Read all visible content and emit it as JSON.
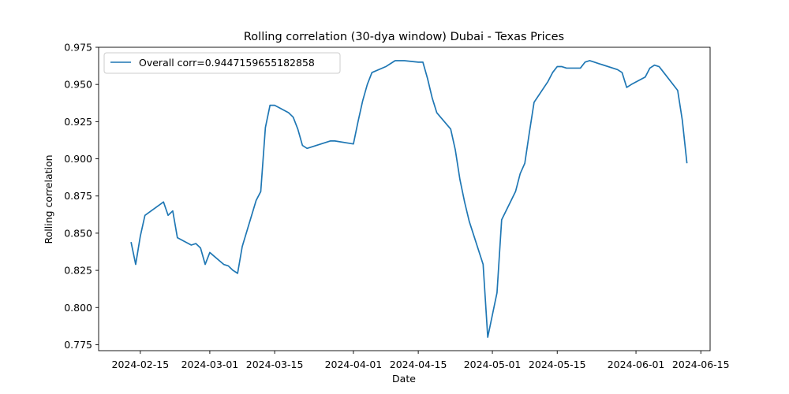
{
  "chart_data": {
    "type": "line",
    "title": "Rolling correlation (30-dya window) Dubai - Texas  Prices",
    "xlabel": "Date",
    "ylabel": "Rolling correlation",
    "grid": false,
    "legend_position": "top-left",
    "xlim": [
      "2024-02-06",
      "2024-06-17"
    ],
    "ylim": [
      0.771,
      0.975
    ],
    "x_ticks": [
      "2024-02-15",
      "2024-03-01",
      "2024-03-15",
      "2024-04-01",
      "2024-04-15",
      "2024-05-01",
      "2024-05-15",
      "2024-06-01",
      "2024-06-15"
    ],
    "y_ticks": [
      "0.775",
      "0.800",
      "0.825",
      "0.850",
      "0.875",
      "0.900",
      "0.925",
      "0.950",
      "0.975"
    ],
    "series": [
      {
        "name": "Overall corr=0.9447159655182858",
        "color": "#1f77b4",
        "x": [
          "2024-02-13",
          "2024-02-14",
          "2024-02-15",
          "2024-02-16",
          "2024-02-20",
          "2024-02-21",
          "2024-02-22",
          "2024-02-23",
          "2024-02-26",
          "2024-02-27",
          "2024-02-28",
          "2024-02-29",
          "2024-03-01",
          "2024-03-04",
          "2024-03-05",
          "2024-03-06",
          "2024-03-07",
          "2024-03-08",
          "2024-03-11",
          "2024-03-12",
          "2024-03-13",
          "2024-03-14",
          "2024-03-15",
          "2024-03-18",
          "2024-03-19",
          "2024-03-20",
          "2024-03-21",
          "2024-03-22",
          "2024-03-25",
          "2024-03-26",
          "2024-03-27",
          "2024-03-28",
          "2024-04-01",
          "2024-04-02",
          "2024-04-03",
          "2024-04-04",
          "2024-04-05",
          "2024-04-08",
          "2024-04-09",
          "2024-04-10",
          "2024-04-11",
          "2024-04-12",
          "2024-04-15",
          "2024-04-16",
          "2024-04-17",
          "2024-04-18",
          "2024-04-19",
          "2024-04-22",
          "2024-04-23",
          "2024-04-24",
          "2024-04-25",
          "2024-04-26",
          "2024-04-29",
          "2024-04-30",
          "2024-05-01",
          "2024-05-02",
          "2024-05-03",
          "2024-05-06",
          "2024-05-07",
          "2024-05-08",
          "2024-05-09",
          "2024-05-10",
          "2024-05-13",
          "2024-05-14",
          "2024-05-15",
          "2024-05-16",
          "2024-05-17",
          "2024-05-20",
          "2024-05-21",
          "2024-05-22",
          "2024-05-23",
          "2024-05-24",
          "2024-05-28",
          "2024-05-29",
          "2024-05-30",
          "2024-05-31",
          "2024-06-03",
          "2024-06-04",
          "2024-06-05",
          "2024-06-06",
          "2024-06-07",
          "2024-06-10",
          "2024-06-11",
          "2024-06-12"
        ],
        "values": [
          0.844,
          0.829,
          0.848,
          0.862,
          0.871,
          0.862,
          0.865,
          0.847,
          0.842,
          0.843,
          0.84,
          0.829,
          0.837,
          0.829,
          0.828,
          0.825,
          0.823,
          0.841,
          0.872,
          0.878,
          0.921,
          0.936,
          0.936,
          0.931,
          0.928,
          0.92,
          0.909,
          0.907,
          0.91,
          0.911,
          0.912,
          0.912,
          0.91,
          0.925,
          0.939,
          0.95,
          0.958,
          0.962,
          0.964,
          0.966,
          0.966,
          0.966,
          0.965,
          0.965,
          0.954,
          0.941,
          0.931,
          0.92,
          0.906,
          0.886,
          0.871,
          0.858,
          0.829,
          0.78,
          0.795,
          0.81,
          0.859,
          0.878,
          0.89,
          0.897,
          0.918,
          0.938,
          0.952,
          0.958,
          0.962,
          0.962,
          0.961,
          0.961,
          0.965,
          0.966,
          0.965,
          0.964,
          0.96,
          0.958,
          0.948,
          0.95,
          0.955,
          0.961,
          0.963,
          0.962,
          0.958,
          0.946,
          0.926,
          0.897
        ]
      }
    ]
  }
}
